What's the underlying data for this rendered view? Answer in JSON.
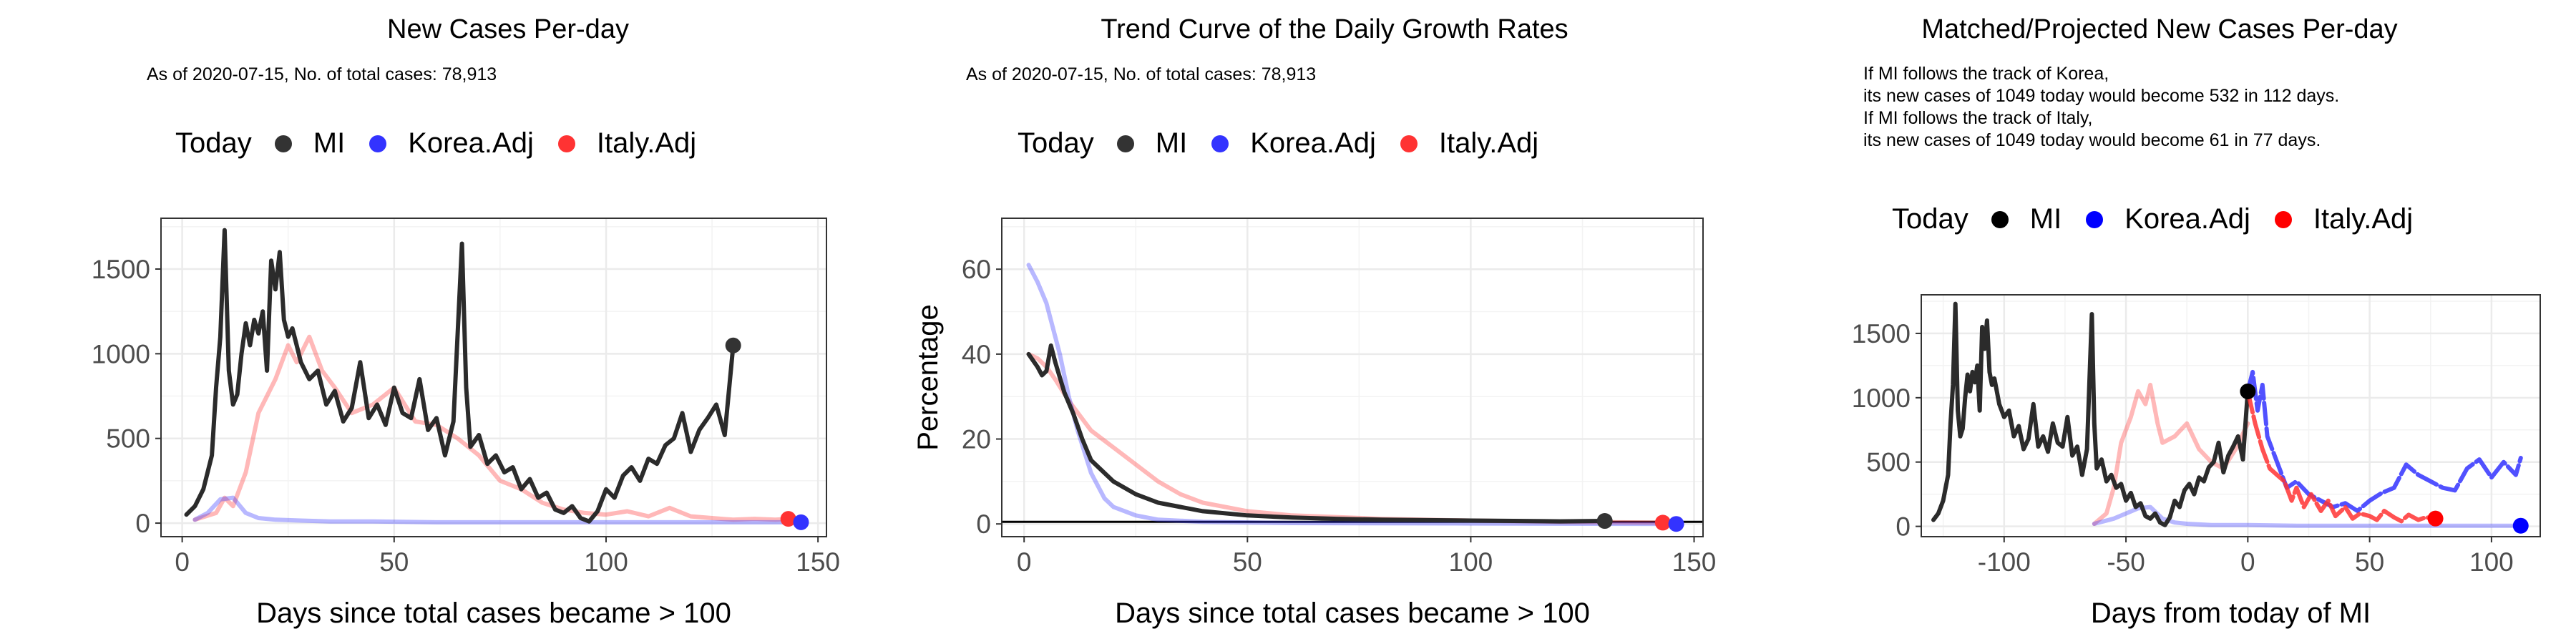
{
  "colors": {
    "MI": "#000000",
    "Korea.Adj": "#0000ff",
    "Italy.Adj": "#ff0000",
    "grid": "#ebebeb"
  },
  "panels": [
    {
      "title": "New Cases Per-day",
      "subtitle": "As of 2020-07-15, No. of total cases: 78,913",
      "notes": [],
      "legend": {
        "title": "Today",
        "items": [
          "MI",
          "Korea.Adj",
          "Italy.Adj"
        ]
      }
    },
    {
      "title": "Trend Curve of the Daily Growth Rates",
      "subtitle": "As of 2020-07-15, No. of total cases: 78,913",
      "notes": [],
      "legend": {
        "title": "Today",
        "items": [
          "MI",
          "Korea.Adj",
          "Italy.Adj"
        ]
      }
    },
    {
      "title": "Matched/Projected New Cases Per-day",
      "subtitle": "",
      "notes": [
        "If MI follows the track of Korea,",
        "its new cases of 1049 today would become 532 in 112 days.",
        "If MI follows the track of Italy,",
        "its new cases of 1049 today would become 61 in 77 days."
      ],
      "legend": {
        "title": "Today",
        "items": [
          "MI",
          "Korea.Adj",
          "Italy.Adj"
        ]
      }
    }
  ],
  "chart_data": [
    {
      "type": "line",
      "title": "New Cases Per-day",
      "xlabel": "Days since total cases became > 100",
      "ylabel": "",
      "xlim": [
        -5,
        152
      ],
      "ylim": [
        -80,
        1800
      ],
      "xticks": [
        0,
        50,
        100,
        150
      ],
      "yticks": [
        0,
        500,
        1000,
        1500
      ],
      "grid": true,
      "legend_position": "top",
      "series": [
        {
          "name": "Italy.Adj",
          "faded": true,
          "x": [
            3,
            8,
            10,
            12,
            15,
            18,
            20,
            22,
            25,
            27,
            30,
            33,
            36,
            40,
            45,
            50,
            55,
            60,
            65,
            70,
            75,
            80,
            85,
            90,
            95,
            100,
            105,
            110,
            115,
            120,
            125,
            130,
            135,
            140,
            143
          ],
          "y": [
            20,
            60,
            150,
            100,
            300,
            650,
            750,
            850,
            1050,
            950,
            1100,
            900,
            800,
            650,
            700,
            800,
            600,
            580,
            500,
            400,
            250,
            200,
            120,
            80,
            60,
            50,
            70,
            40,
            90,
            40,
            30,
            20,
            25,
            20,
            25
          ]
        },
        {
          "name": "Korea.Adj",
          "faded": true,
          "x": [
            3,
            6,
            9,
            12,
            15,
            18,
            22,
            28,
            35,
            45,
            60,
            80,
            100,
            120,
            140,
            146
          ],
          "y": [
            20,
            60,
            140,
            150,
            60,
            30,
            20,
            15,
            10,
            10,
            5,
            5,
            5,
            5,
            5,
            5
          ]
        },
        {
          "name": "MI",
          "x": [
            1,
            3,
            5,
            7,
            8,
            9,
            10,
            11,
            12,
            13,
            14,
            15,
            16,
            17,
            18,
            19,
            20,
            21,
            22,
            23,
            24,
            25,
            26,
            27,
            28,
            30,
            32,
            34,
            36,
            38,
            40,
            42,
            44,
            46,
            48,
            50,
            52,
            54,
            56,
            58,
            60,
            62,
            64,
            66,
            67,
            68,
            70,
            72,
            74,
            76,
            78,
            80,
            82,
            84,
            86,
            88,
            90,
            92,
            94,
            96,
            98,
            100,
            102,
            104,
            106,
            108,
            110,
            112,
            114,
            116,
            118,
            120,
            122,
            124,
            126,
            128,
            130
          ],
          "y": [
            50,
            100,
            200,
            400,
            800,
            1100,
            1730,
            900,
            700,
            760,
            1000,
            1180,
            1050,
            1200,
            1120,
            1250,
            900,
            1550,
            1380,
            1600,
            1200,
            1100,
            1150,
            1050,
            950,
            850,
            900,
            700,
            780,
            600,
            680,
            950,
            620,
            700,
            580,
            800,
            650,
            620,
            850,
            550,
            620,
            400,
            600,
            1650,
            800,
            450,
            520,
            350,
            400,
            300,
            330,
            200,
            260,
            150,
            180,
            80,
            60,
            100,
            30,
            10,
            70,
            200,
            150,
            280,
            330,
            250,
            380,
            350,
            460,
            500,
            650,
            420,
            550,
            620,
            700,
            520,
            1049
          ]
        }
      ],
      "today_points": [
        {
          "name": "MI",
          "x": 130,
          "y": 1049
        },
        {
          "name": "Italy.Adj",
          "x": 143,
          "y": 25
        },
        {
          "name": "Korea.Adj",
          "x": 146,
          "y": 5
        }
      ]
    },
    {
      "type": "line",
      "title": "Trend Curve of the Daily Growth Rates",
      "xlabel": "Days since total cases became > 100",
      "ylabel": "Percentage",
      "xlim": [
        -5,
        152
      ],
      "ylim": [
        -3,
        72
      ],
      "xticks": [
        0,
        50,
        100,
        150
      ],
      "yticks": [
        0,
        20,
        40,
        60
      ],
      "grid": true,
      "legend_position": "top",
      "hline": 0.5,
      "series": [
        {
          "name": "Italy.Adj",
          "faded": true,
          "x": [
            1,
            3,
            5,
            7,
            10,
            15,
            20,
            25,
            30,
            35,
            40,
            50,
            60,
            80,
            100,
            120,
            143
          ],
          "y": [
            40,
            39,
            37,
            34,
            29,
            22,
            18,
            14,
            10,
            7,
            5,
            3,
            2,
            1.2,
            0.8,
            0.5,
            0.3
          ]
        },
        {
          "name": "Korea.Adj",
          "faded": true,
          "x": [
            1,
            3,
            5,
            8,
            10,
            12,
            15,
            18,
            20,
            25,
            30,
            40,
            60,
            100,
            146
          ],
          "y": [
            61,
            57,
            52,
            40,
            30,
            22,
            12,
            6,
            4,
            2,
            1,
            0.5,
            0.2,
            0.1,
            0
          ]
        },
        {
          "name": "MI",
          "x": [
            1,
            3,
            4,
            5,
            6,
            7,
            9,
            11,
            13,
            15,
            20,
            25,
            30,
            35,
            40,
            50,
            60,
            70,
            80,
            100,
            120,
            130
          ],
          "y": [
            40,
            37,
            35,
            36,
            42,
            38,
            31,
            26,
            20,
            15,
            10,
            7,
            5,
            4,
            3,
            2,
            1.5,
            1.2,
            1,
            0.8,
            0.6,
            0.7
          ]
        }
      ],
      "today_points": [
        {
          "name": "MI",
          "x": 130,
          "y": 0.7
        },
        {
          "name": "Italy.Adj",
          "x": 143,
          "y": 0.3
        },
        {
          "name": "Korea.Adj",
          "x": 146,
          "y": 0
        }
      ]
    },
    {
      "type": "line",
      "title": "Matched/Projected New Cases Per-day",
      "xlabel": "Days from today of MI",
      "ylabel": "",
      "xlim": [
        -134,
        120
      ],
      "ylim": [
        -80,
        1800
      ],
      "xticks": [
        -100,
        -50,
        0,
        50,
        100
      ],
      "yticks": [
        0,
        500,
        1000,
        1500
      ],
      "grid": true,
      "legend_position": "top",
      "series": [
        {
          "name": "Italy.Adj",
          "faded": true,
          "x": [
            -63,
            -58,
            -55,
            -52,
            -48,
            -45,
            -42,
            -40,
            -37,
            -35,
            -30,
            -25,
            -20,
            -15,
            -10,
            -5,
            0
          ],
          "y": [
            20,
            100,
            300,
            650,
            850,
            1050,
            950,
            1100,
            800,
            650,
            700,
            800,
            600,
            500,
            450,
            600,
            800
          ]
        },
        {
          "name": "Korea.Adj",
          "faded": true,
          "x": [
            -63,
            -55,
            -50,
            -45,
            -40,
            -35,
            -30,
            -25,
            -15,
            0,
            20,
            40,
            60,
            80,
            100,
            112
          ],
          "y": [
            20,
            60,
            100,
            140,
            150,
            60,
            30,
            20,
            10,
            10,
            5,
            5,
            5,
            5,
            5,
            5
          ]
        },
        {
          "name": "MI",
          "x": [
            -129,
            -127,
            -125,
            -123,
            -122,
            -121,
            -120,
            -119,
            -118,
            -117,
            -116,
            -115,
            -114,
            -113,
            -112,
            -111,
            -110,
            -109,
            -108,
            -107,
            -106,
            -105,
            -104,
            -103,
            -102,
            -100,
            -98,
            -96,
            -94,
            -92,
            -90,
            -88,
            -86,
            -84,
            -82,
            -80,
            -78,
            -76,
            -74,
            -72,
            -70,
            -68,
            -66,
            -64,
            -63,
            -62,
            -60,
            -58,
            -56,
            -54,
            -52,
            -50,
            -48,
            -46,
            -44,
            -42,
            -40,
            -38,
            -36,
            -34,
            -32,
            -30,
            -28,
            -26,
            -24,
            -22,
            -20,
            -18,
            -16,
            -14,
            -12,
            -10,
            -8,
            -6,
            -4,
            -2,
            0
          ],
          "y": [
            50,
            100,
            200,
            400,
            800,
            1100,
            1730,
            900,
            700,
            760,
            1000,
            1180,
            1050,
            1200,
            1120,
            1250,
            900,
            1550,
            1380,
            1600,
            1200,
            1100,
            1150,
            1050,
            950,
            850,
            900,
            700,
            780,
            600,
            680,
            950,
            620,
            700,
            580,
            800,
            650,
            620,
            850,
            550,
            620,
            400,
            600,
            1650,
            800,
            450,
            520,
            350,
            400,
            300,
            330,
            200,
            260,
            150,
            180,
            80,
            60,
            100,
            30,
            10,
            70,
            200,
            150,
            280,
            330,
            250,
            380,
            350,
            460,
            500,
            650,
            420,
            550,
            620,
            700,
            520,
            1049
          ]
        },
        {
          "name": "Korea.Adj",
          "projection": true,
          "x": [
            0,
            2,
            4,
            6,
            8,
            10,
            13,
            16,
            20,
            25,
            30,
            35,
            40,
            45,
            50,
            55,
            60,
            65,
            70,
            75,
            80,
            85,
            90,
            95,
            100,
            105,
            110,
            112
          ],
          "y": [
            1049,
            1200,
            900,
            1100,
            700,
            600,
            450,
            300,
            350,
            250,
            200,
            150,
            180,
            120,
            200,
            260,
            300,
            480,
            400,
            350,
            300,
            280,
            450,
            520,
            380,
            500,
            400,
            532
          ]
        },
        {
          "name": "Italy.Adj",
          "projection": true,
          "x": [
            0,
            3,
            6,
            9,
            12,
            15,
            18,
            20,
            23,
            26,
            30,
            33,
            36,
            40,
            43,
            46,
            50,
            53,
            56,
            60,
            63,
            66,
            70,
            73,
            77
          ],
          "y": [
            1049,
            800,
            600,
            450,
            400,
            350,
            200,
            300,
            150,
            250,
            120,
            200,
            80,
            150,
            60,
            100,
            80,
            50,
            120,
            70,
            40,
            90,
            50,
            70,
            61
          ]
        }
      ],
      "today_points": [
        {
          "name": "MI",
          "x": 0,
          "y": 1049
        },
        {
          "name": "Italy.Adj",
          "x": 77,
          "y": 61
        },
        {
          "name": "Korea.Adj",
          "x": 112,
          "y": 5
        }
      ]
    }
  ]
}
